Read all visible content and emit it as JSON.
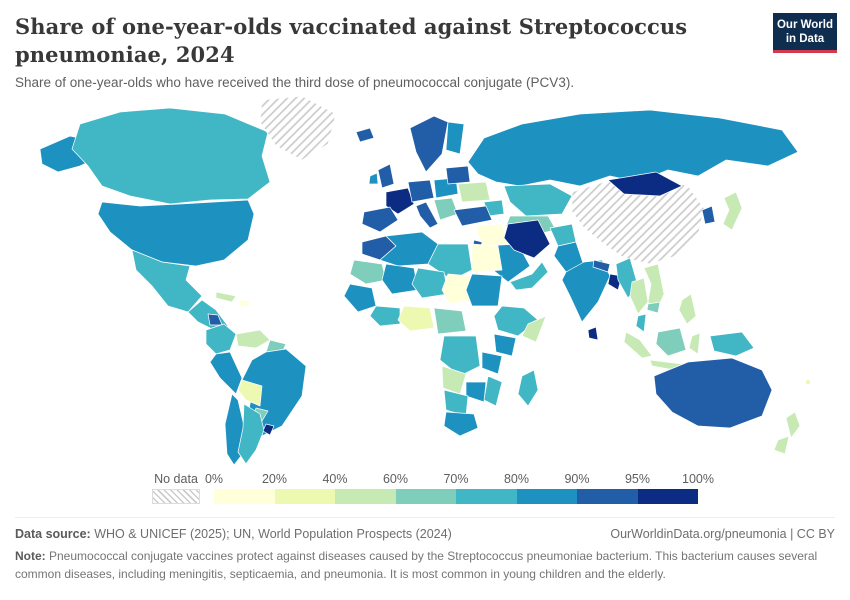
{
  "header": {
    "title": "Share of one-year-olds vaccinated against Streptococcus pneumoniae, 2024",
    "subtitle": "Share of one-year-olds who have received the third dose of pneumococcal conjugate (PCV3).",
    "logo": {
      "line1": "Our World",
      "line2": "in Data",
      "bg": "#0f2d4e",
      "accent": "#d13b4b"
    }
  },
  "legend": {
    "no_data_label": "No data",
    "tick_labels": [
      "0%",
      "20%",
      "40%",
      "60%",
      "70%",
      "80%",
      "90%",
      "95%",
      "100%"
    ],
    "bin_colors": [
      "#ffffd9",
      "#edf8b1",
      "#c7e9b4",
      "#7fcdbb",
      "#41b6c4",
      "#1d91c0",
      "#225ea8",
      "#0c2c84"
    ]
  },
  "footer": {
    "data_source_label": "Data source:",
    "data_source": " WHO & UNICEF (2025); UN, World Population Prospects (2024)",
    "link": "OurWorldinData.org/pneumonia | CC BY",
    "note_label": "Note:",
    "note": " Pneumococcal conjugate vaccines protect against diseases caused by the Streptococcus pneumoniae bacterium. This bacterium causes several common diseases, including meningitis, septicaemia, and pneumonia. It is most common in young children and the elderly."
  },
  "chart_data": {
    "type": "choropleth-map",
    "title": "Share of one-year-olds vaccinated against Streptococcus pneumoniae, 2024",
    "unit": "% of one-year-olds (third dose of PCV)",
    "bins": [
      "0-20%",
      "20-40%",
      "40-60%",
      "60-70%",
      "70-80%",
      "80-90%",
      "90-95%",
      "95-100%"
    ],
    "no_data_pattern": "diagonal-hatch",
    "regions": {
      "alaska": "80-90%",
      "canada": "70-80%",
      "greenland": "no-data",
      "united-states": "80-90%",
      "mexico": "70-80%",
      "central-america": "70-80%",
      "nicaragua": "90-95%",
      "cuba": "40-60%",
      "hispaniola": "0-20%",
      "colombia": "70-80%",
      "venezuela": "40-60%",
      "guyanas": "60-70%",
      "brazil": "80-90%",
      "peru": "80-90%",
      "bolivia": "20-40%",
      "paraguay": "60-70%",
      "chile": "80-90%",
      "argentina": "70-80%",
      "uruguay": "95-100%",
      "iceland": "90-95%",
      "united-kingdom": "90-95%",
      "ireland": "80-90%",
      "iberia": "90-95%",
      "france": "95-100%",
      "central-europe": "90-95%",
      "italy": "90-95%",
      "scandinavia": "90-95%",
      "finland": "80-90%",
      "poland": "80-90%",
      "balkans": "60-70%",
      "ukraine": "40-60%",
      "baltics-belarus": "90-95%",
      "russia": "80-90%",
      "kazakhstan": "70-80%",
      "uzbekistan-turkmenistan": "60-70%",
      "caucasus": "70-80%",
      "turkey": "90-95%",
      "syria-iraq": "0-20%",
      "levant": "90-95%",
      "saudi-arabia": "80-90%",
      "yemen-oman": "70-80%",
      "iran": "95-100%",
      "afghanistan": "70-80%",
      "pakistan": "80-90%",
      "india": "80-90%",
      "nepal": "90-95%",
      "bangladesh": "95-100%",
      "sri-lanka": "95-100%",
      "china": "no-data",
      "mongolia": "95-100%",
      "korea": "90-95%",
      "japan": "40-60%",
      "myanmar": "70-80%",
      "thailand": "40-60%",
      "vietnam-laos": "40-60%",
      "cambodia": "60-70%",
      "malay-peninsula": "70-80%",
      "sumatra": "40-60%",
      "java": "40-60%",
      "borneo": "60-70%",
      "sulawesi": "40-60%",
      "new-guinea": "70-80%",
      "philippines": "40-60%",
      "australia": "90-95%",
      "new-zealand-north": "40-60%",
      "new-zealand-south": "40-60%",
      "pacific-islands": "20-40%",
      "morocco": "90-95%",
      "algeria": "80-90%",
      "libya": "70-80%",
      "egypt": "0-20%",
      "mauritania": "60-70%",
      "mali": "80-90%",
      "niger": "70-80%",
      "chad": "0-20%",
      "sudan": "80-90%",
      "west-africa-coast": "80-90%",
      "ivory-ghana": "70-80%",
      "nigeria": "20-40%",
      "cameroon-car": "60-70%",
      "ethiopia": "70-80%",
      "somalia": "40-60%",
      "kenya-uganda": "80-90%",
      "drc": "70-80%",
      "tanzania": "80-90%",
      "angola": "40-60%",
      "zambia-zimbabwe": "80-90%",
      "mozambique": "70-80%",
      "namibia-botswana": "70-80%",
      "south-africa": "80-90%",
      "madagascar": "70-80%"
    }
  }
}
